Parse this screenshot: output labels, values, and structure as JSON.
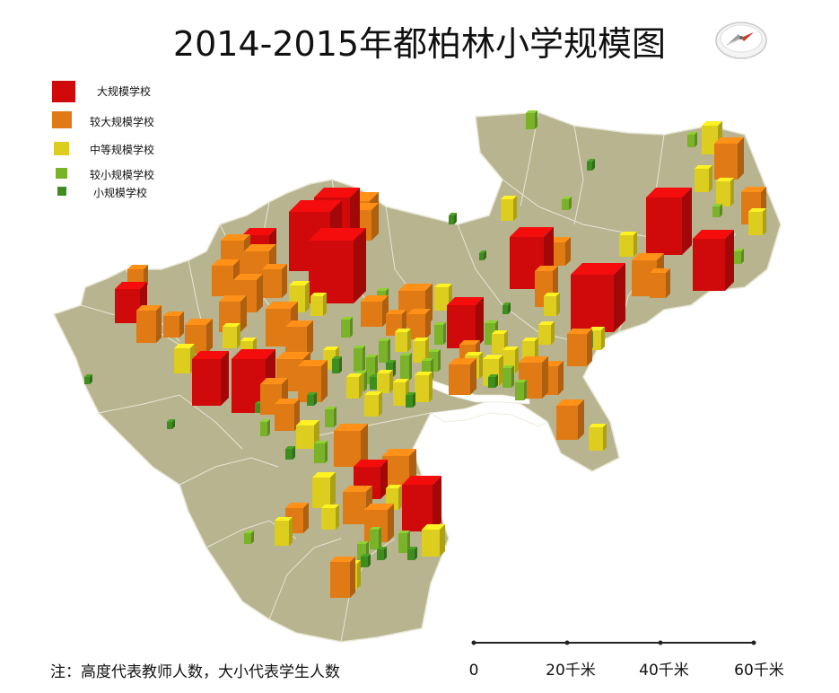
{
  "title": "2014-2015年都柏林小学规模图",
  "legend": [
    {
      "label": "大规模学校",
      "color": "#d00a0a"
    },
    {
      "label": "较大规模学校",
      "color": "#e07a14"
    },
    {
      "label": "中等规模学校",
      "color": "#dccd1e"
    },
    {
      "label": "较小规模学校",
      "color": "#7ab22a"
    },
    {
      "label": "小规模学校",
      "color": "#3f8c1f"
    }
  ],
  "note": "注：高度代表教师人数，大小代表学生人数",
  "scale_bar": {
    "ticks": [
      "0",
      "20千米",
      "40千米",
      "60千米"
    ]
  },
  "icons": {
    "north_arrow": "compass-icon"
  },
  "colors": {
    "land": "#b7b48f",
    "boundary": "#e8e6d6",
    "background": "#ffffff"
  }
}
